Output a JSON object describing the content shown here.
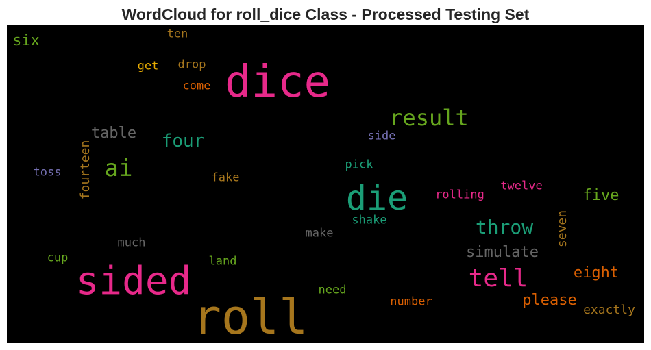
{
  "title": "WordCloud for roll_dice Class - Processed Testing Set",
  "chart_data": {
    "type": "wordcloud",
    "background": "#000000",
    "words": [
      {
        "text": "dice",
        "color": "#e7298a"
      },
      {
        "text": "roll",
        "color": "#a6761d"
      },
      {
        "text": "sided",
        "color": "#e7298a"
      },
      {
        "text": "die",
        "color": "#1b9e77"
      },
      {
        "text": "result",
        "color": "#66a61e"
      },
      {
        "text": "tell",
        "color": "#e7298a"
      },
      {
        "text": "ai",
        "color": "#66a61e"
      },
      {
        "text": "throw",
        "color": "#1b9e77"
      },
      {
        "text": "four",
        "color": "#1b9e77"
      },
      {
        "text": "simulate",
        "color": "#666666"
      },
      {
        "text": "table",
        "color": "#666666"
      },
      {
        "text": "please",
        "color": "#d95f02"
      },
      {
        "text": "eight",
        "color": "#d95f02"
      },
      {
        "text": "five",
        "color": "#66a61e"
      },
      {
        "text": "six",
        "color": "#66a61e"
      },
      {
        "text": "fourteen",
        "color": "#a6761d"
      },
      {
        "text": "seven",
        "color": "#a6761d"
      },
      {
        "text": "exactly",
        "color": "#a6761d"
      },
      {
        "text": "number",
        "color": "#d95f02"
      },
      {
        "text": "rolling",
        "color": "#e7298a"
      },
      {
        "text": "twelve",
        "color": "#e7298a"
      },
      {
        "text": "drop",
        "color": "#a6761d"
      },
      {
        "text": "come",
        "color": "#d95f02"
      },
      {
        "text": "get",
        "color": "#e6ab02"
      },
      {
        "text": "ten",
        "color": "#a6761d"
      },
      {
        "text": "toss",
        "color": "#7570b3"
      },
      {
        "text": "fake",
        "color": "#a6761d"
      },
      {
        "text": "side",
        "color": "#7570b3"
      },
      {
        "text": "pick",
        "color": "#1b9e77"
      },
      {
        "text": "shake",
        "color": "#1b9e77"
      },
      {
        "text": "make",
        "color": "#666666"
      },
      {
        "text": "much",
        "color": "#666666"
      },
      {
        "text": "cup",
        "color": "#66a61e"
      },
      {
        "text": "land",
        "color": "#66a61e"
      },
      {
        "text": "need",
        "color": "#66a61e"
      }
    ]
  }
}
